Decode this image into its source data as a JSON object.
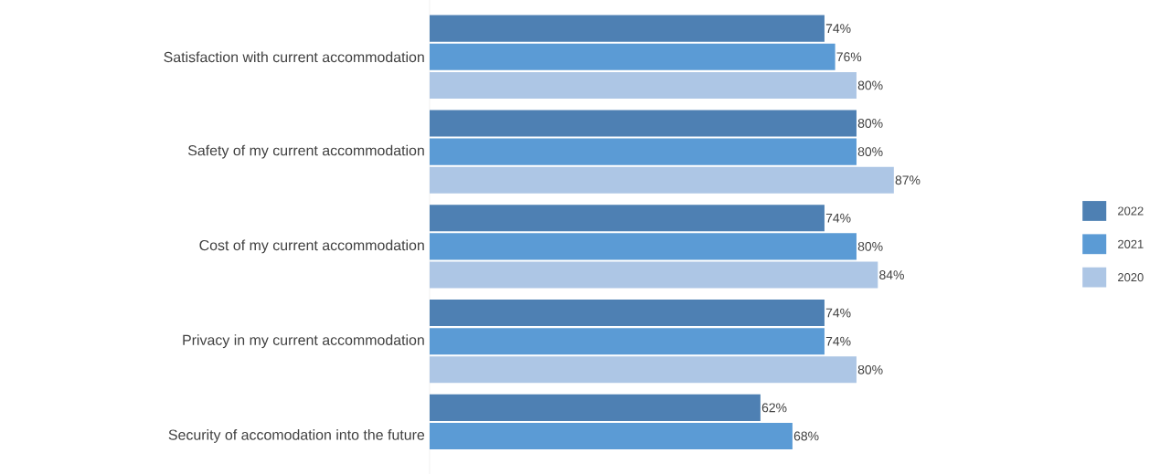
{
  "chart_data": {
    "type": "bar",
    "orientation": "horizontal",
    "categories": [
      "Satisfaction with current accommodation",
      "Safety of my current accommodation",
      "Cost of my current accommodation",
      "Privacy in my current accommodation",
      "Security of accomodation into the future"
    ],
    "series": [
      {
        "name": "2022",
        "color": "#4e80b3",
        "values": [
          74,
          80,
          74,
          74,
          62
        ],
        "value_labels": [
          "74%",
          "80%",
          "74%",
          "74%",
          "62%"
        ]
      },
      {
        "name": "2021",
        "color": "#5b9bd5",
        "values": [
          76,
          80,
          80,
          74,
          68
        ],
        "value_labels": [
          "76%",
          "80%",
          "80%",
          "74%",
          "68%"
        ]
      },
      {
        "name": "2020",
        "color": "#adc6e5",
        "values": [
          80,
          87,
          84,
          80,
          null
        ],
        "value_labels": [
          "80%",
          "87%",
          "84%",
          "80%",
          null
        ]
      }
    ],
    "legend": "right"
  }
}
